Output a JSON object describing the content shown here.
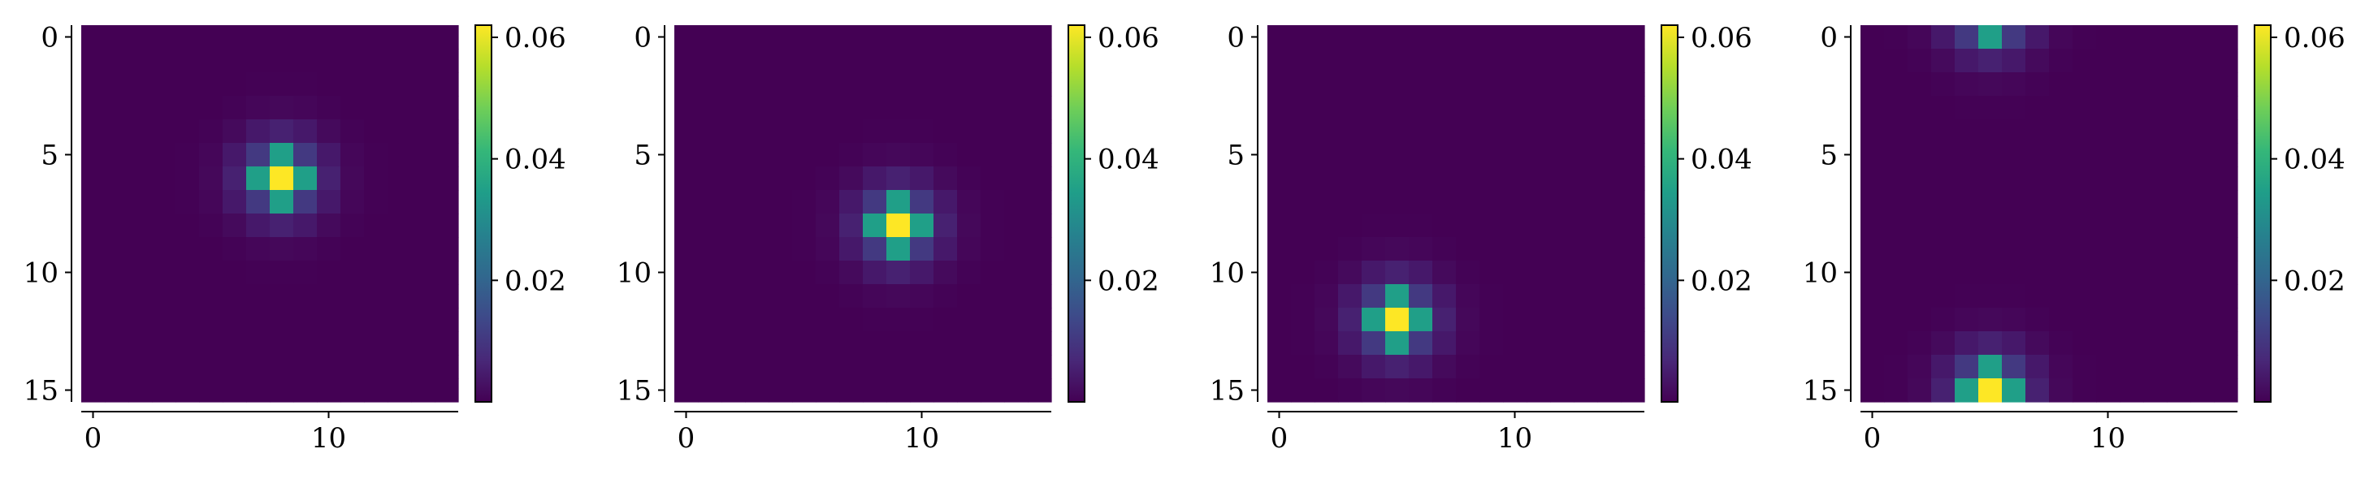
{
  "chart_data": [
    {
      "type": "heatmap",
      "title": "",
      "xlabel": "",
      "ylabel": "",
      "grid_size": [
        16,
        16
      ],
      "peak": {
        "row": 6,
        "col": 8,
        "value": 0.062
      },
      "x_ticks": [
        0,
        10
      ],
      "y_ticks": [
        0,
        5,
        10,
        15
      ],
      "colorbar": {
        "ticks": [
          0.02,
          0.04,
          0.06
        ],
        "tick_labels": [
          "0.02",
          "0.04",
          "0.06"
        ],
        "range": [
          0.0,
          0.062
        ]
      },
      "periodic": false
    },
    {
      "type": "heatmap",
      "title": "",
      "xlabel": "",
      "ylabel": "",
      "grid_size": [
        16,
        16
      ],
      "peak": {
        "row": 8,
        "col": 9,
        "value": 0.062
      },
      "x_ticks": [
        0,
        10
      ],
      "y_ticks": [
        0,
        5,
        10,
        15
      ],
      "colorbar": {
        "ticks": [
          0.02,
          0.04,
          0.06
        ],
        "tick_labels": [
          "0.02",
          "0.04",
          "0.06"
        ],
        "range": [
          0.0,
          0.062
        ]
      },
      "periodic": false
    },
    {
      "type": "heatmap",
      "title": "",
      "xlabel": "",
      "ylabel": "",
      "grid_size": [
        16,
        16
      ],
      "peak": {
        "row": 12,
        "col": 5,
        "value": 0.062
      },
      "x_ticks": [
        0,
        10
      ],
      "y_ticks": [
        0,
        5,
        10,
        15
      ],
      "colorbar": {
        "ticks": [
          0.02,
          0.04,
          0.06
        ],
        "tick_labels": [
          "0.02",
          "0.04",
          "0.06"
        ],
        "range": [
          0.0,
          0.062
        ]
      },
      "periodic": false
    },
    {
      "type": "heatmap",
      "title": "",
      "xlabel": "",
      "ylabel": "",
      "grid_size": [
        16,
        16
      ],
      "peak": {
        "row": 15,
        "col": 5,
        "value": 0.062
      },
      "x_ticks": [
        0,
        10
      ],
      "y_ticks": [
        0,
        5,
        10,
        15
      ],
      "colorbar": {
        "ticks": [
          0.02,
          0.04,
          0.06
        ],
        "tick_labels": [
          "0.02",
          "0.04",
          "0.06"
        ],
        "range": [
          0.0,
          0.062
        ]
      },
      "periodic": true
    }
  ],
  "colormap": "viridis",
  "colors": {
    "viridis_stops": [
      "#440154",
      "#482878",
      "#3e4989",
      "#31688e",
      "#26828e",
      "#1f9e89",
      "#35b779",
      "#6ece58",
      "#b5de2b",
      "#fde725"
    ]
  }
}
